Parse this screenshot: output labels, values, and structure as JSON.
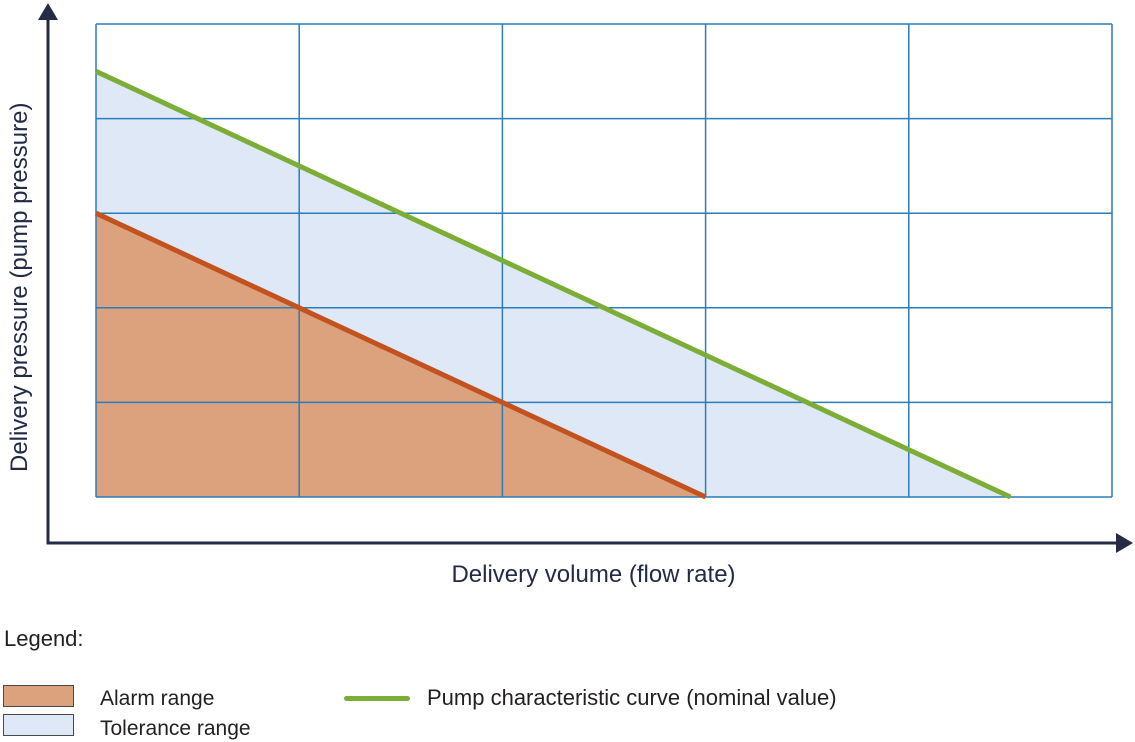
{
  "chart_data": {
    "type": "area",
    "title": "",
    "xlabel": "Delivery volume (flow rate)",
    "ylabel": "Delivery pressure (pump pressure)",
    "xlim": [
      0,
      5
    ],
    "ylim": [
      0,
      5
    ],
    "tick_labels": "none (qualitative axes with arrows)",
    "grid": {
      "cols": 5,
      "rows": 5,
      "show": true,
      "color": "#2b7cba"
    },
    "axis": {
      "color": "#262c45",
      "width": 3
    },
    "regions": [
      {
        "name": "Alarm range",
        "color": "#dca27d",
        "polygon": [
          [
            0,
            0
          ],
          [
            0,
            3
          ],
          [
            3,
            0
          ]
        ]
      },
      {
        "name": "Tolerance range",
        "color": "#dee8f6",
        "polygon": [
          [
            0,
            3
          ],
          [
            0,
            4.5
          ],
          [
            4.5,
            0
          ],
          [
            3,
            0
          ]
        ]
      }
    ],
    "series": [
      {
        "name": "Alarm range upper limit",
        "color": "#c2521f",
        "width": 5,
        "points": [
          [
            0,
            3
          ],
          [
            3,
            0
          ]
        ]
      },
      {
        "name": "Pump characteristic curve (nominal value)",
        "color": "#7bad37",
        "width": 5,
        "points": [
          [
            0,
            4.5
          ],
          [
            4.5,
            0
          ]
        ]
      }
    ],
    "legend_position": "bottom"
  },
  "legend": {
    "title": "Legend:",
    "items": [
      {
        "label": "Alarm range",
        "swatch": "rect",
        "color": "#dca27d"
      },
      {
        "label": "Tolerance range",
        "swatch": "rect",
        "color": "#dee8f6"
      },
      {
        "label": "Pump characteristic curve (nominal value)",
        "swatch": "line",
        "color": "#7bad37"
      }
    ]
  },
  "colors": {
    "axis_text": "#222a46",
    "legend_text": "#231f20",
    "swatch_border": "#4a4a4a",
    "grid": "#2b7cba",
    "axis": "#262c45",
    "alarm_fill": "#dca27d",
    "tolerance_fill": "#dee8f6",
    "alarm_line": "#c2521f",
    "curve_line": "#7bad37"
  }
}
